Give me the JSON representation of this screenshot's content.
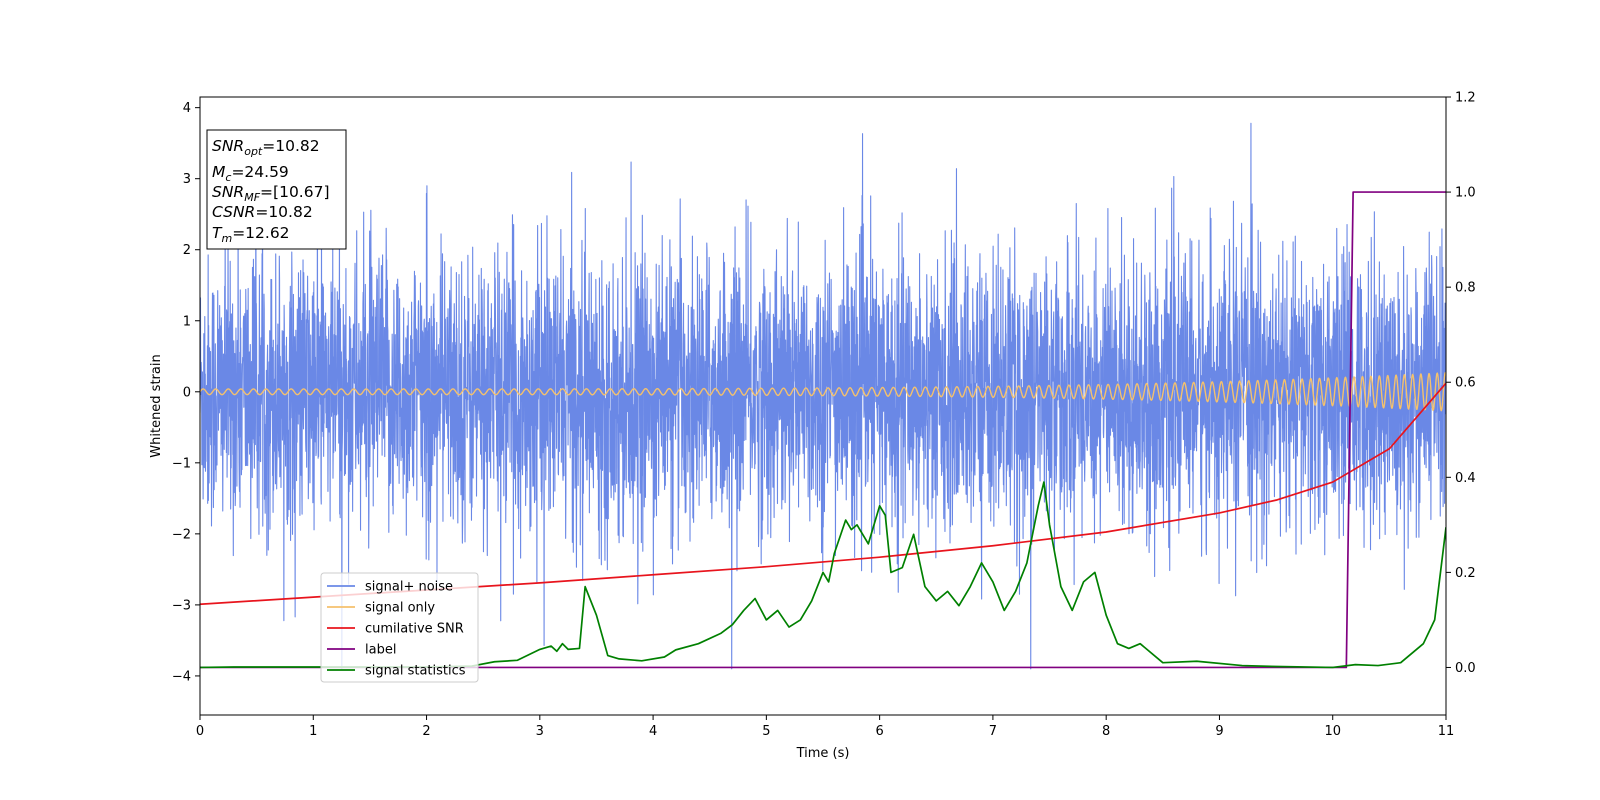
{
  "chart_data": {
    "type": "line",
    "xlabel": "Time (s)",
    "ylabel": "Whitened strain",
    "xlim": [
      0,
      11
    ],
    "ylim": [
      -4.55,
      4.15
    ],
    "y2lim": [
      -0.1,
      1.2
    ],
    "x_ticks": [
      "0",
      "1",
      "2",
      "3",
      "4",
      "5",
      "6",
      "7",
      "8",
      "9",
      "10",
      "11"
    ],
    "y_ticks": [
      "4",
      "3",
      "2",
      "1",
      "0",
      "−1",
      "−2",
      "−3",
      "−4"
    ],
    "y2_ticks": [
      "1.2",
      "1.0",
      "0.8",
      "0.6",
      "0.4",
      "0.2",
      "0.0"
    ],
    "stats_box": [
      {
        "main": "SNR",
        "sub": "opt",
        "value": "=10.82"
      },
      {
        "main": "M",
        "sub": "c",
        "value": "=24.59"
      },
      {
        "main": "SNR",
        "sub": "MF",
        "value": "=[10.67]"
      },
      {
        "main": "CSNR",
        "sub": "",
        "value": "=10.82"
      },
      {
        "main": "T",
        "sub": "m",
        "value": "=12.62"
      }
    ],
    "legend_position": "lower-left",
    "series": [
      {
        "name": "signal+ noise",
        "color": "#6a88e6",
        "axis": "left",
        "kind": "noise",
        "amplitude_std": 0.95,
        "range": [
          -3.9,
          3.78
        ]
      },
      {
        "name": "signal only",
        "color": "#f4c16d",
        "axis": "left",
        "kind": "chirp",
        "amplitude_start": 0.04,
        "amplitude_end": 0.27
      },
      {
        "name": "cumilative SNR",
        "color": "#e8141d",
        "axis": "right",
        "x": [
          0,
          1,
          2,
          3,
          4,
          5,
          6,
          7,
          8,
          9,
          9.5,
          10,
          10.5,
          11
        ],
        "y": [
          0.133,
          0.148,
          0.163,
          0.178,
          0.195,
          0.212,
          0.232,
          0.256,
          0.285,
          0.325,
          0.352,
          0.39,
          0.46,
          0.598
        ]
      },
      {
        "name": "label",
        "color": "#800080",
        "axis": "right",
        "x": [
          0,
          10.12,
          10.18,
          11
        ],
        "y": [
          0.0,
          0.0,
          1.0,
          1.0
        ]
      },
      {
        "name": "signal statistics",
        "color": "#008000",
        "axis": "right",
        "x": [
          0,
          0.3,
          1.0,
          2.0,
          2.4,
          2.6,
          2.8,
          3.0,
          3.1,
          3.15,
          3.2,
          3.25,
          3.35,
          3.4,
          3.5,
          3.6,
          3.7,
          3.9,
          4.1,
          4.2,
          4.4,
          4.6,
          4.7,
          4.8,
          4.9,
          5.0,
          5.1,
          5.2,
          5.3,
          5.4,
          5.5,
          5.55,
          5.6,
          5.7,
          5.75,
          5.8,
          5.9,
          6.0,
          6.05,
          6.1,
          6.2,
          6.3,
          6.4,
          6.5,
          6.6,
          6.7,
          6.8,
          6.9,
          7.0,
          7.05,
          7.1,
          7.2,
          7.3,
          7.4,
          7.45,
          7.5,
          7.6,
          7.7,
          7.8,
          7.9,
          8.0,
          8.1,
          8.2,
          8.3,
          8.5,
          8.8,
          9.2,
          9.5,
          10.0,
          10.2,
          10.4,
          10.6,
          10.8,
          10.9,
          11.0
        ],
        "y": [
          0.0,
          0.001,
          0.001,
          0.001,
          0.003,
          0.012,
          0.015,
          0.038,
          0.045,
          0.034,
          0.05,
          0.038,
          0.04,
          0.17,
          0.11,
          0.025,
          0.018,
          0.014,
          0.022,
          0.037,
          0.05,
          0.072,
          0.09,
          0.12,
          0.145,
          0.1,
          0.12,
          0.085,
          0.1,
          0.14,
          0.2,
          0.18,
          0.24,
          0.31,
          0.29,
          0.3,
          0.26,
          0.34,
          0.32,
          0.2,
          0.21,
          0.28,
          0.17,
          0.14,
          0.16,
          0.13,
          0.17,
          0.22,
          0.18,
          0.15,
          0.12,
          0.16,
          0.22,
          0.34,
          0.39,
          0.3,
          0.17,
          0.12,
          0.18,
          0.2,
          0.11,
          0.05,
          0.04,
          0.05,
          0.01,
          0.013,
          0.004,
          0.002,
          0.0,
          0.006,
          0.004,
          0.01,
          0.05,
          0.1,
          0.295
        ]
      }
    ]
  }
}
